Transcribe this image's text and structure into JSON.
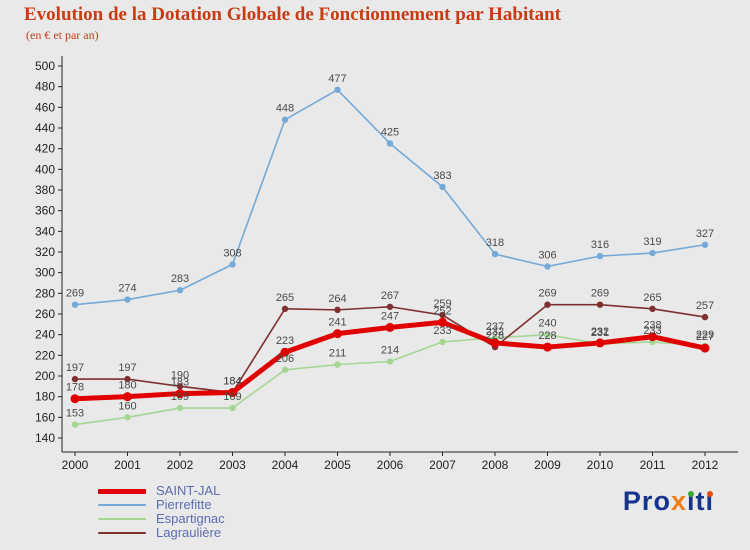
{
  "title": "Evolution de la Dotation Globale de Fonctionnement par Habitant",
  "subtitle": "(en € et par an)",
  "chart_data": {
    "type": "line",
    "x": [
      2000,
      2001,
      2002,
      2003,
      2004,
      2005,
      2006,
      2007,
      2008,
      2009,
      2010,
      2011,
      2012
    ],
    "series": [
      {
        "name": "SAINT-JAL",
        "color": "#e10000",
        "thick": true,
        "values": [
          178,
          180,
          183,
          184,
          223,
          241,
          247,
          252,
          232,
          228,
          232,
          238,
          227
        ]
      },
      {
        "name": "Pierrefitte",
        "color": "#74a9d8",
        "thick": false,
        "values": [
          269,
          274,
          283,
          308,
          448,
          477,
          425,
          383,
          318,
          306,
          316,
          319,
          327
        ]
      },
      {
        "name": "Espartignac",
        "color": "#a5d693",
        "thick": false,
        "values": [
          153,
          160,
          169,
          169,
          206,
          211,
          214,
          233,
          237,
          240,
          231,
          233,
          229
        ]
      },
      {
        "name": "Lagraulière",
        "color": "#7e3030",
        "thick": false,
        "values": [
          197,
          197,
          190,
          184,
          265,
          264,
          267,
          259,
          228,
          269,
          269,
          265,
          257
        ]
      }
    ],
    "ylim": [
      140,
      500
    ],
    "ytick_step": 20,
    "grid": false,
    "legend_position": "bottom-left",
    "label_color": "#4a4a4a",
    "axis_color": "#222222"
  },
  "logo": {
    "text": "Proxiti",
    "letters": [
      {
        "text": "Pro",
        "color": "#16348c"
      },
      {
        "text": "x",
        "color": "#f07d1a"
      },
      {
        "text": "i",
        "color": "#16348c",
        "dot": "#3aaa35"
      },
      {
        "text": "t",
        "color": "#16348c"
      },
      {
        "text": "i",
        "color": "#16348c",
        "dot": "#e8490f"
      }
    ]
  }
}
